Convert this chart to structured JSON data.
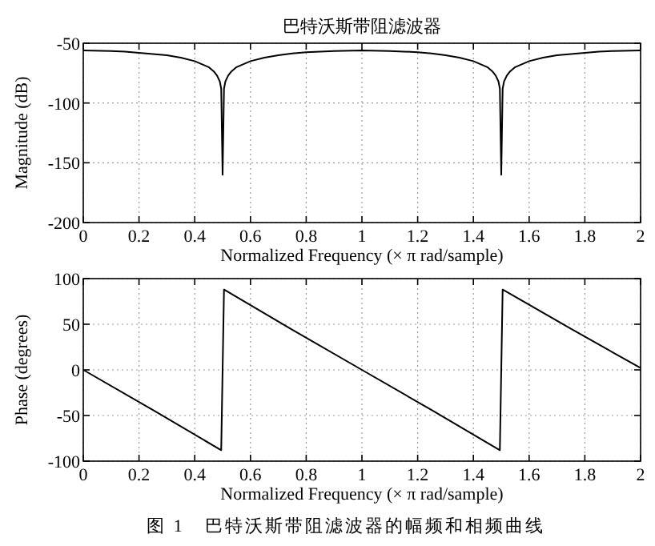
{
  "chart_data": [
    {
      "type": "line",
      "title": "巴特沃斯带阻滤波器",
      "xlabel": "Normalized Frequency  (× π rad/sample)",
      "ylabel": "Magnitude (dB)",
      "xlim": [
        0,
        2
      ],
      "ylim": [
        -200,
        -50
      ],
      "xticks": [
        0,
        0.2,
        0.4,
        0.6,
        0.8,
        1,
        1.2,
        1.4,
        1.6,
        1.8,
        2
      ],
      "yticks": [
        -200,
        -150,
        -100,
        -50
      ],
      "grid": true,
      "series": [
        {
          "color": "#000000",
          "x": [
            0,
            0.1,
            0.15,
            0.2,
            0.25,
            0.3,
            0.35,
            0.4,
            0.43,
            0.45,
            0.47,
            0.48,
            0.49,
            0.495,
            0.5,
            0.505,
            0.51,
            0.52,
            0.53,
            0.55,
            0.57,
            0.6,
            0.65,
            0.7,
            0.75,
            0.8,
            0.9,
            1,
            1.1,
            1.2,
            1.25,
            1.3,
            1.35,
            1.4,
            1.43,
            1.45,
            1.47,
            1.48,
            1.49,
            1.495,
            1.5,
            1.505,
            1.51,
            1.52,
            1.53,
            1.55,
            1.57,
            1.6,
            1.65,
            1.7,
            1.75,
            1.8,
            1.85,
            1.9,
            2
          ],
          "values": [
            -56,
            -56.5,
            -57,
            -58,
            -59,
            -60,
            -62,
            -65,
            -68,
            -70,
            -74,
            -77,
            -82,
            -88,
            -160,
            -88,
            -82,
            -77,
            -74,
            -70,
            -68,
            -65,
            -62,
            -60,
            -58.5,
            -57.5,
            -56.5,
            -56,
            -56.5,
            -57.5,
            -58.5,
            -60,
            -62,
            -65,
            -68,
            -70,
            -74,
            -77,
            -82,
            -88,
            -160,
            -88,
            -82,
            -77,
            -74,
            -70,
            -68,
            -65,
            -62,
            -60,
            -59,
            -58,
            -57,
            -56.5,
            -56
          ]
        }
      ]
    },
    {
      "type": "line",
      "xlabel": "Normalized Frequency  (× π rad/sample)",
      "ylabel": "Phase (degrees)",
      "xlim": [
        0,
        2
      ],
      "ylim": [
        -100,
        100
      ],
      "xticks": [
        0,
        0.2,
        0.4,
        0.6,
        0.8,
        1,
        1.2,
        1.4,
        1.6,
        1.8,
        2
      ],
      "yticks": [
        -100,
        -50,
        0,
        50,
        100
      ],
      "grid": true,
      "annotations": [
        "图 1　巴特沃斯带阻滤波器的幅频和相频曲线"
      ],
      "series": [
        {
          "color": "#000000",
          "x": [
            0,
            0.25,
            0.495,
            0.505,
            0.75,
            1,
            1.25,
            1.495,
            1.505,
            1.75,
            2
          ],
          "values": [
            0,
            -44,
            -88,
            88,
            44,
            0,
            -44,
            -88,
            88,
            45,
            2
          ]
        }
      ]
    }
  ]
}
